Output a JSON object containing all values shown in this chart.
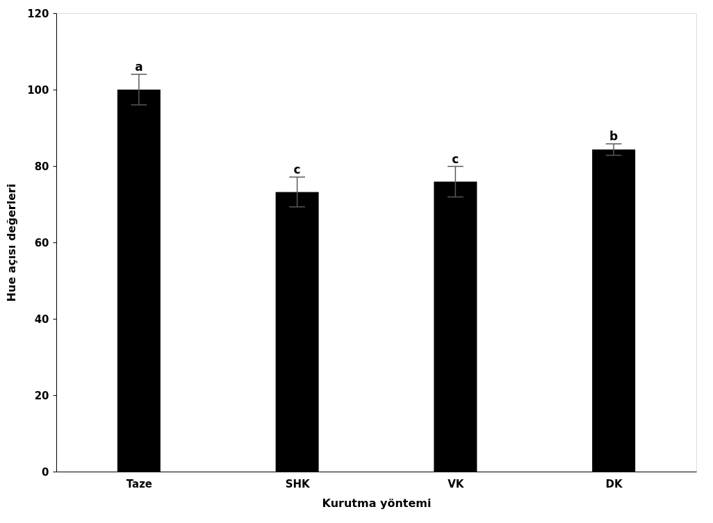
{
  "chart_data": {
    "type": "bar",
    "xlabel": "Kurutma yöntemi",
    "ylabel": "Hue açısı değerleri",
    "categories": [
      "Taze",
      "SHK",
      "VK",
      "DK"
    ],
    "values": [
      100,
      73.2,
      75.9,
      84.3
    ],
    "errors": [
      4,
      3.9,
      4,
      1.5
    ],
    "color": "#000000",
    "ylim": [
      0,
      120
    ],
    "yticks": [
      0,
      20,
      40,
      60,
      80,
      100,
      120
    ],
    "grid": false,
    "annotations": [
      {
        "text": "a",
        "x": "Taze",
        "y": 104
      },
      {
        "text": "c",
        "x": "SHK",
        "y": 77.1
      },
      {
        "text": "c",
        "x": "VK",
        "y": 79.9
      },
      {
        "text": "b",
        "x": "DK",
        "y": 85.8
      }
    ]
  }
}
